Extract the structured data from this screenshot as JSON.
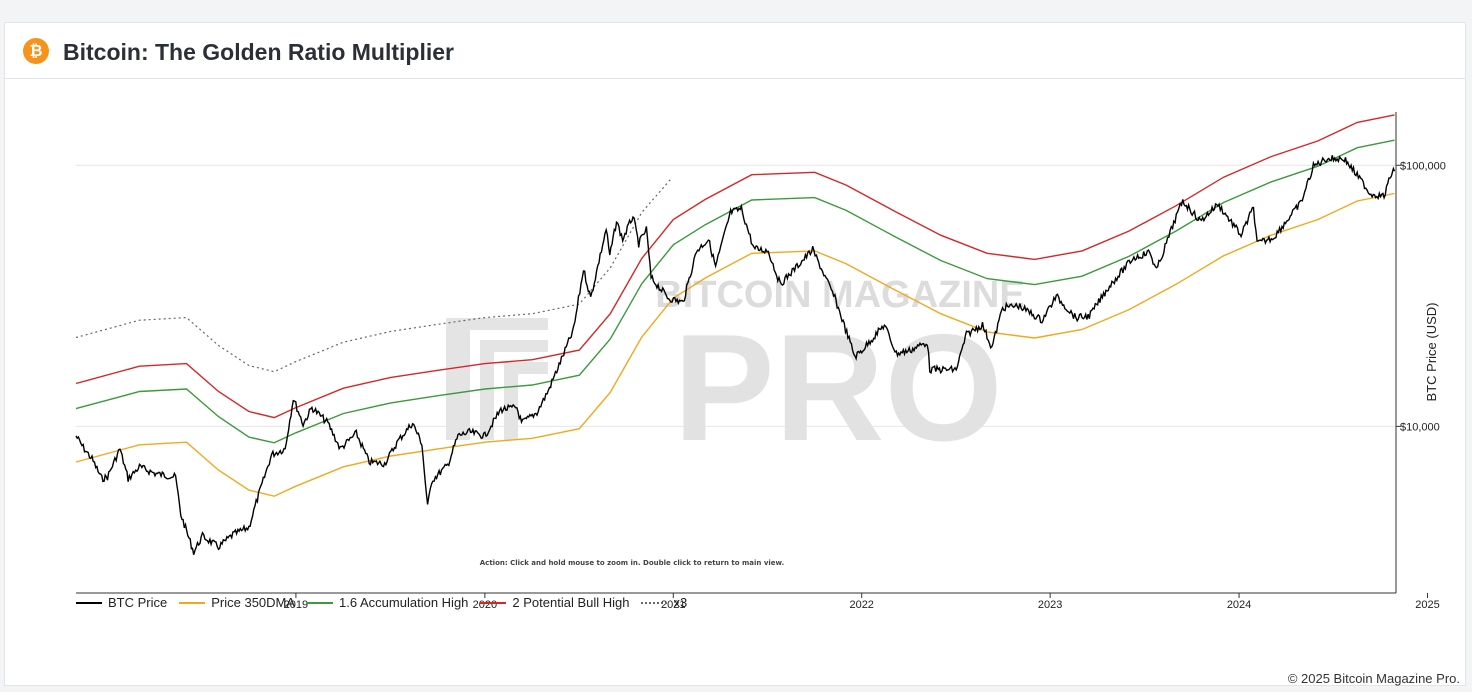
{
  "header": {
    "logo_glyph": "₿",
    "title": "Bitcoin: The Golden Ratio Multiplier"
  },
  "watermark": {
    "line1": "BITCOIN MAGAZINE",
    "line2": "PRO"
  },
  "action_hint": "Action: Click and hold mouse to zoom in.  Double click to return to main view.",
  "copyright": "© 2025 Bitcoin Magazine Pro.",
  "colors": {
    "btc": "#000000",
    "dma": "#f2a81d",
    "acc": "#3c9a3c",
    "bull": "#d62728",
    "x3": "#666666",
    "grid": "#e6e6e6"
  },
  "chart_data": {
    "type": "line",
    "title": "Bitcoin: The Golden Ratio Multiplier",
    "ylabel": "BTC Price (USD)",
    "y_scale": "log",
    "ylim": [
      2300,
      160000
    ],
    "xlim": [
      "2018-05-01",
      "2025-05-01"
    ],
    "x_ticks": [
      "2019",
      "2020",
      "2021",
      "2022",
      "2023",
      "2024",
      "2025"
    ],
    "y_ticks": [
      {
        "value": 10000,
        "label": "$10,000"
      },
      {
        "value": 100000,
        "label": "$100,000"
      }
    ],
    "legend_position": "bottom-left",
    "series": [
      {
        "name": "BTC Price",
        "key": "btc",
        "style": "solid",
        "points": [
          [
            "2018-05-01",
            9200
          ],
          [
            "2018-05-15",
            8300
          ],
          [
            "2018-06-01",
            7500
          ],
          [
            "2018-06-20",
            6300
          ],
          [
            "2018-07-01",
            6400
          ],
          [
            "2018-07-25",
            8200
          ],
          [
            "2018-08-10",
            6300
          ],
          [
            "2018-09-01",
            7000
          ],
          [
            "2018-10-01",
            6600
          ],
          [
            "2018-11-10",
            6400
          ],
          [
            "2018-11-20",
            4600
          ],
          [
            "2018-12-15",
            3300
          ],
          [
            "2019-01-01",
            3800
          ],
          [
            "2019-02-01",
            3450
          ],
          [
            "2019-03-01",
            3850
          ],
          [
            "2019-04-01",
            4100
          ],
          [
            "2019-04-15",
            5100
          ],
          [
            "2019-05-15",
            7800
          ],
          [
            "2019-06-10",
            8200
          ],
          [
            "2019-06-26",
            12800
          ],
          [
            "2019-07-15",
            10200
          ],
          [
            "2019-08-01",
            11800
          ],
          [
            "2019-09-01",
            10300
          ],
          [
            "2019-09-25",
            8200
          ],
          [
            "2019-10-26",
            9400
          ],
          [
            "2019-11-20",
            7300
          ],
          [
            "2019-12-20",
            7200
          ],
          [
            "2020-01-15",
            8800
          ],
          [
            "2020-02-12",
            10300
          ],
          [
            "2020-03-01",
            8600
          ],
          [
            "2020-03-12",
            4900
          ],
          [
            "2020-03-20",
            6200
          ],
          [
            "2020-04-20",
            7100
          ],
          [
            "2020-05-10",
            9200
          ],
          [
            "2020-06-01",
            9500
          ],
          [
            "2020-07-01",
            9200
          ],
          [
            "2020-08-01",
            11600
          ],
          [
            "2020-09-01",
            11800
          ],
          [
            "2020-09-10",
            10300
          ],
          [
            "2020-10-10",
            11300
          ],
          [
            "2020-11-01",
            13700
          ],
          [
            "2020-12-01",
            19000
          ],
          [
            "2020-12-20",
            23500
          ],
          [
            "2021-01-08",
            40000
          ],
          [
            "2021-01-22",
            31000
          ],
          [
            "2021-02-21",
            57000
          ],
          [
            "2021-02-28",
            45000
          ],
          [
            "2021-03-13",
            61000
          ],
          [
            "2021-03-25",
            52000
          ],
          [
            "2021-04-14",
            64000
          ],
          [
            "2021-04-25",
            50000
          ],
          [
            "2021-05-10",
            57000
          ],
          [
            "2021-05-19",
            37000
          ],
          [
            "2021-06-22",
            31000
          ],
          [
            "2021-07-20",
            29800
          ],
          [
            "2021-08-15",
            47000
          ],
          [
            "2021-09-07",
            52000
          ],
          [
            "2021-09-21",
            41000
          ],
          [
            "2021-10-20",
            66000
          ],
          [
            "2021-11-10",
            68000
          ],
          [
            "2021-12-04",
            48000
          ],
          [
            "2022-01-01",
            47000
          ],
          [
            "2022-01-24",
            35000
          ],
          [
            "2022-03-28",
            47500
          ],
          [
            "2022-05-10",
            31000
          ],
          [
            "2022-06-18",
            18500
          ],
          [
            "2022-07-01",
            19500
          ],
          [
            "2022-08-14",
            24500
          ],
          [
            "2022-09-06",
            19000
          ],
          [
            "2022-10-01",
            19500
          ],
          [
            "2022-11-05",
            21000
          ],
          [
            "2022-11-10",
            16500
          ],
          [
            "2022-12-31",
            16500
          ],
          [
            "2023-01-20",
            22500
          ],
          [
            "2023-02-20",
            24500
          ],
          [
            "2023-03-10",
            20000
          ],
          [
            "2023-03-31",
            28500
          ],
          [
            "2023-05-01",
            29000
          ],
          [
            "2023-06-15",
            25500
          ],
          [
            "2023-07-13",
            31500
          ],
          [
            "2023-08-20",
            26000
          ],
          [
            "2023-09-15",
            26500
          ],
          [
            "2023-10-24",
            34500
          ],
          [
            "2023-12-08",
            44000
          ],
          [
            "2024-01-10",
            46500
          ],
          [
            "2024-01-23",
            39500
          ],
          [
            "2024-02-28",
            62000
          ],
          [
            "2024-03-14",
            73000
          ],
          [
            "2024-04-17",
            61000
          ],
          [
            "2024-05-21",
            71000
          ],
          [
            "2024-07-05",
            54000
          ],
          [
            "2024-07-29",
            69000
          ],
          [
            "2024-08-05",
            50000
          ],
          [
            "2024-09-06",
            53000
          ],
          [
            "2024-10-29",
            72000
          ],
          [
            "2024-11-22",
            99000
          ],
          [
            "2024-12-17",
            106000
          ],
          [
            "2025-01-21",
            106000
          ],
          [
            "2025-02-03",
            98000
          ],
          [
            "2025-03-01",
            84000
          ],
          [
            "2025-03-11",
            78000
          ],
          [
            "2025-04-08",
            76000
          ],
          [
            "2025-04-22",
            93000
          ],
          [
            "2025-04-28",
            95000
          ]
        ]
      },
      {
        "name": "Price 350DMA",
        "key": "dma",
        "style": "solid",
        "points": [
          [
            "2018-05-01",
            7300
          ],
          [
            "2018-09-01",
            8500
          ],
          [
            "2018-12-01",
            8700
          ],
          [
            "2019-02-01",
            6800
          ],
          [
            "2019-04-01",
            5700
          ],
          [
            "2019-05-20",
            5400
          ],
          [
            "2019-07-01",
            5900
          ],
          [
            "2019-10-01",
            7000
          ],
          [
            "2020-01-01",
            7700
          ],
          [
            "2020-04-01",
            8200
          ],
          [
            "2020-07-01",
            8700
          ],
          [
            "2020-10-01",
            9000
          ],
          [
            "2020-12-31",
            9800
          ],
          [
            "2021-03-01",
            13500
          ],
          [
            "2021-05-01",
            22000
          ],
          [
            "2021-07-01",
            31000
          ],
          [
            "2021-09-01",
            37000
          ],
          [
            "2021-11-30",
            46000
          ],
          [
            "2022-04-01",
            47000
          ],
          [
            "2022-06-01",
            42000
          ],
          [
            "2022-09-01",
            33500
          ],
          [
            "2022-12-01",
            27000
          ],
          [
            "2023-03-01",
            23000
          ],
          [
            "2023-06-01",
            21800
          ],
          [
            "2023-09-01",
            23500
          ],
          [
            "2023-12-01",
            28000
          ],
          [
            "2024-03-01",
            35000
          ],
          [
            "2024-06-01",
            45000
          ],
          [
            "2024-09-01",
            54000
          ],
          [
            "2024-12-01",
            62000
          ],
          [
            "2025-02-15",
            73000
          ],
          [
            "2025-04-28",
            78000
          ]
        ]
      },
      {
        "name": "1.6 Accumulation High",
        "key": "acc",
        "style": "solid",
        "points": [
          [
            "2018-05-01",
            11700
          ],
          [
            "2018-09-01",
            13600
          ],
          [
            "2018-12-01",
            13900
          ],
          [
            "2019-02-01",
            10900
          ],
          [
            "2019-04-01",
            9100
          ],
          [
            "2019-05-20",
            8650
          ],
          [
            "2019-07-01",
            9450
          ],
          [
            "2019-10-01",
            11200
          ],
          [
            "2020-01-01",
            12300
          ],
          [
            "2020-04-01",
            13100
          ],
          [
            "2020-07-01",
            13900
          ],
          [
            "2020-10-01",
            14400
          ],
          [
            "2020-12-31",
            15700
          ],
          [
            "2021-03-01",
            21600
          ],
          [
            "2021-05-01",
            35200
          ],
          [
            "2021-07-01",
            49600
          ],
          [
            "2021-09-01",
            59200
          ],
          [
            "2021-11-30",
            73600
          ],
          [
            "2022-04-01",
            75200
          ],
          [
            "2022-06-01",
            67200
          ],
          [
            "2022-09-01",
            53600
          ],
          [
            "2022-12-01",
            43200
          ],
          [
            "2023-03-01",
            36800
          ],
          [
            "2023-06-01",
            34900
          ],
          [
            "2023-09-01",
            37600
          ],
          [
            "2023-12-01",
            44800
          ],
          [
            "2024-03-01",
            56000
          ],
          [
            "2024-06-01",
            72000
          ],
          [
            "2024-09-01",
            86400
          ],
          [
            "2024-12-01",
            99200
          ],
          [
            "2025-02-15",
            116800
          ],
          [
            "2025-04-28",
            124800
          ]
        ]
      },
      {
        "name": "2 Potential Bull High",
        "key": "bull",
        "style": "solid",
        "points": [
          [
            "2018-05-01",
            14600
          ],
          [
            "2018-09-01",
            17000
          ],
          [
            "2018-12-01",
            17400
          ],
          [
            "2019-02-01",
            13600
          ],
          [
            "2019-04-01",
            11400
          ],
          [
            "2019-05-20",
            10800
          ],
          [
            "2019-07-01",
            11800
          ],
          [
            "2019-10-01",
            14000
          ],
          [
            "2020-01-01",
            15400
          ],
          [
            "2020-04-01",
            16400
          ],
          [
            "2020-07-01",
            17400
          ],
          [
            "2020-10-01",
            18000
          ],
          [
            "2020-12-31",
            19600
          ],
          [
            "2021-03-01",
            27000
          ],
          [
            "2021-05-01",
            44000
          ],
          [
            "2021-07-01",
            62000
          ],
          [
            "2021-09-01",
            74000
          ],
          [
            "2021-11-30",
            92000
          ],
          [
            "2022-04-01",
            94000
          ],
          [
            "2022-06-01",
            84000
          ],
          [
            "2022-09-01",
            67000
          ],
          [
            "2022-12-01",
            54000
          ],
          [
            "2023-03-01",
            46000
          ],
          [
            "2023-06-01",
            43600
          ],
          [
            "2023-09-01",
            47000
          ],
          [
            "2023-12-01",
            56000
          ],
          [
            "2024-03-01",
            70000
          ],
          [
            "2024-06-01",
            90000
          ],
          [
            "2024-09-01",
            108000
          ],
          [
            "2024-12-01",
            124000
          ],
          [
            "2025-02-15",
            146000
          ],
          [
            "2025-04-28",
            156000
          ]
        ]
      },
      {
        "name": "x3",
        "key": "x3",
        "style": "dotted",
        "points": [
          [
            "2018-05-01",
            21900
          ],
          [
            "2018-09-01",
            25500
          ],
          [
            "2018-12-01",
            26100
          ],
          [
            "2019-02-01",
            20400
          ],
          [
            "2019-04-01",
            17100
          ],
          [
            "2019-05-20",
            16200
          ],
          [
            "2019-07-01",
            17700
          ],
          [
            "2019-10-01",
            21000
          ],
          [
            "2020-01-01",
            23100
          ],
          [
            "2020-04-01",
            24600
          ],
          [
            "2020-07-01",
            26100
          ],
          [
            "2020-10-01",
            27000
          ],
          [
            "2020-12-31",
            29400
          ],
          [
            "2021-03-01",
            40500
          ],
          [
            "2021-05-01",
            66000
          ],
          [
            "2021-06-25",
            88000
          ]
        ]
      }
    ]
  }
}
